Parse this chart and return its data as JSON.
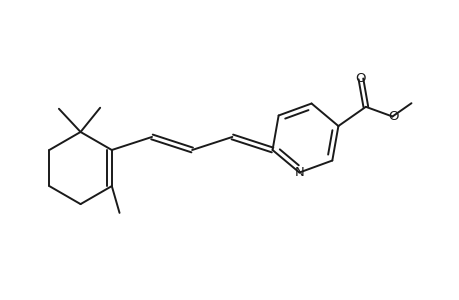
{
  "bg_color": "#ffffff",
  "line_color": "#1a1a1a",
  "line_width": 1.4,
  "figsize": [
    4.6,
    3.0
  ],
  "dpi": 100,
  "xlim": [
    0.3,
    9.2
  ],
  "ylim": [
    1.2,
    5.8
  ]
}
